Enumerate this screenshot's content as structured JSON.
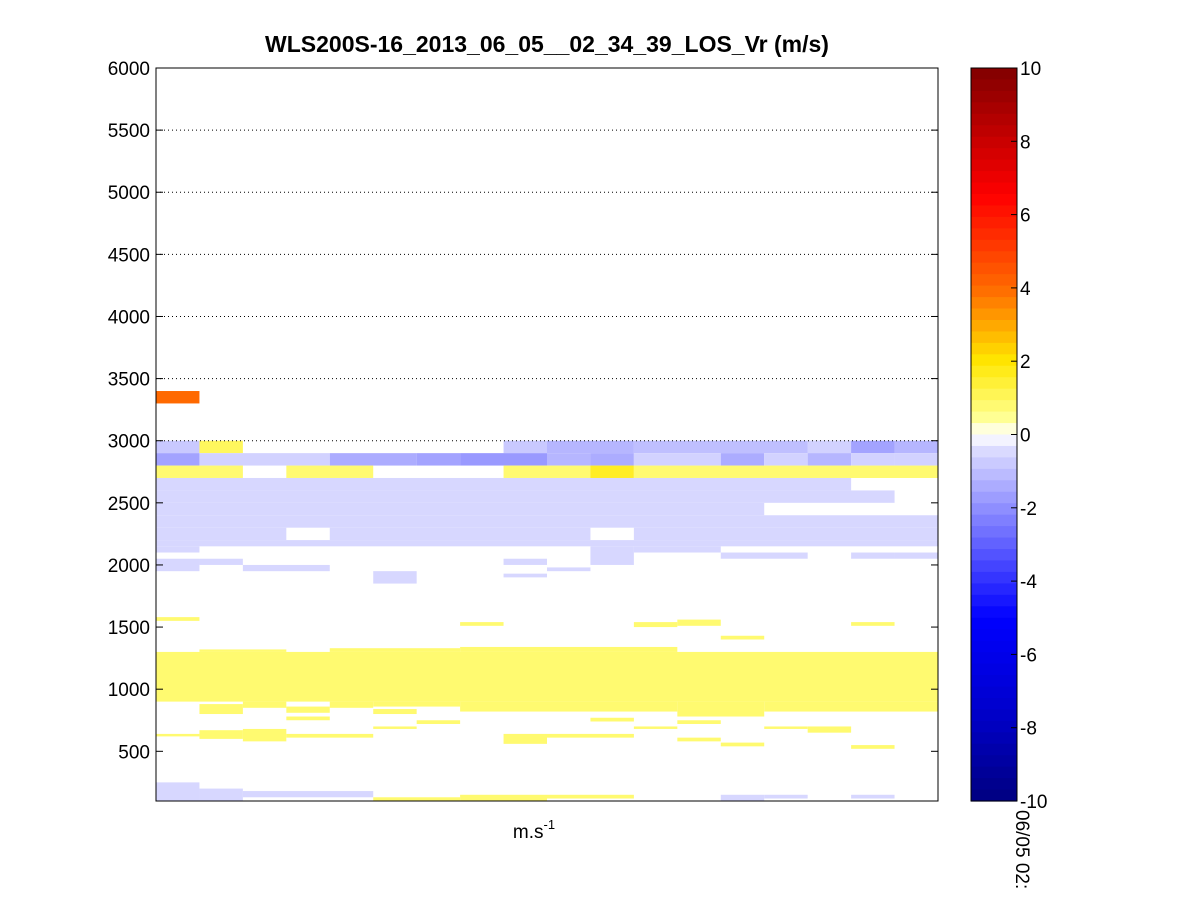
{
  "chart_data": {
    "type": "heatmap",
    "title": "WLS200S-16_2013_06_05__02_34_39_LOS_Vr (m/s)",
    "xlabel_base": "m.s",
    "xlabel_exp": "-1",
    "x_tick_label": "06/05 02:",
    "ylim": [
      100,
      6000
    ],
    "yticks": [
      500,
      1000,
      1500,
      2000,
      2500,
      3000,
      3500,
      4000,
      4500,
      5000,
      5500,
      6000
    ],
    "y_grid_lines": [
      3000,
      3500,
      4000,
      4500,
      5000,
      5500
    ],
    "grid": "dotted horizontal",
    "n_columns": 18,
    "colorbar": {
      "range": [
        -10,
        10
      ],
      "ticks": [
        -10,
        -8,
        -6,
        -4,
        -2,
        0,
        2,
        4,
        6,
        8,
        10
      ],
      "colormap": "blue-white-red (jet-like)",
      "position": "right"
    },
    "cells": [
      {
        "c0": 0,
        "c1": 1,
        "y0": 3300,
        "y1": 3400,
        "v": 4.0
      },
      {
        "c0": 0,
        "c1": 1,
        "y0": 2900,
        "y1": 3000,
        "v": -0.8
      },
      {
        "c0": 1,
        "c1": 2,
        "y0": 2900,
        "y1": 3000,
        "v": 1.0
      },
      {
        "c0": 11,
        "c1": 15,
        "y0": 2900,
        "y1": 3000,
        "v": -1.0
      },
      {
        "c0": 15,
        "c1": 16,
        "y0": 2900,
        "y1": 3000,
        "v": -0.8
      },
      {
        "c0": 8,
        "c1": 9,
        "y0": 2900,
        "y1": 3000,
        "v": -0.8
      },
      {
        "c0": 9,
        "c1": 11,
        "y0": 2900,
        "y1": 3000,
        "v": -1.2
      },
      {
        "c0": 15,
        "c1": 16,
        "y0": 2900,
        "y1": 3000,
        "v": -0.6
      },
      {
        "c0": 16,
        "c1": 17,
        "y0": 2900,
        "y1": 3000,
        "v": -1.6
      },
      {
        "c0": 17,
        "c1": 18,
        "y0": 2900,
        "y1": 3000,
        "v": -1.2
      },
      {
        "c0": 0,
        "c1": 1,
        "y0": 2800,
        "y1": 2900,
        "v": -1.6
      },
      {
        "c0": 1,
        "c1": 4,
        "y0": 2800,
        "y1": 2900,
        "v": -0.6
      },
      {
        "c0": 4,
        "c1": 6,
        "y0": 2800,
        "y1": 2900,
        "v": -1.4
      },
      {
        "c0": 6,
        "c1": 7,
        "y0": 2800,
        "y1": 2900,
        "v": -1.6
      },
      {
        "c0": 7,
        "c1": 9,
        "y0": 2800,
        "y1": 2900,
        "v": -1.8
      },
      {
        "c0": 9,
        "c1": 10,
        "y0": 2800,
        "y1": 2900,
        "v": -1.2
      },
      {
        "c0": 10,
        "c1": 11,
        "y0": 2800,
        "y1": 2900,
        "v": -1.4
      },
      {
        "c0": 11,
        "c1": 13,
        "y0": 2800,
        "y1": 2900,
        "v": -0.6
      },
      {
        "c0": 13,
        "c1": 14,
        "y0": 2800,
        "y1": 2900,
        "v": -1.4
      },
      {
        "c0": 14,
        "c1": 15,
        "y0": 2800,
        "y1": 2900,
        "v": -0.6
      },
      {
        "c0": 15,
        "c1": 16,
        "y0": 2800,
        "y1": 2900,
        "v": -1.2
      },
      {
        "c0": 16,
        "c1": 17,
        "y0": 2800,
        "y1": 2900,
        "v": -0.6
      },
      {
        "c0": 17,
        "c1": 18,
        "y0": 2800,
        "y1": 2900,
        "v": -0.6
      },
      {
        "c0": 0,
        "c1": 2,
        "y0": 2700,
        "y1": 2800,
        "v": 0.8
      },
      {
        "c0": 3,
        "c1": 5,
        "y0": 2700,
        "y1": 2800,
        "v": 0.8
      },
      {
        "c0": 8,
        "c1": 10,
        "y0": 2700,
        "y1": 2800,
        "v": 0.8
      },
      {
        "c0": 10,
        "c1": 11,
        "y0": 2700,
        "y1": 2800,
        "v": 1.6
      },
      {
        "c0": 11,
        "c1": 18,
        "y0": 2700,
        "y1": 2800,
        "v": 0.8
      },
      {
        "c0": 0,
        "c1": 16,
        "y0": 2600,
        "y1": 2700,
        "v": -0.5
      },
      {
        "c0": 0,
        "c1": 17,
        "y0": 2500,
        "y1": 2600,
        "v": -0.5
      },
      {
        "c0": 0,
        "c1": 14,
        "y0": 2400,
        "y1": 2500,
        "v": -0.5
      },
      {
        "c0": 0,
        "c1": 18,
        "y0": 2300,
        "y1": 2400,
        "v": -0.5
      },
      {
        "c0": 0,
        "c1": 3,
        "y0": 2200,
        "y1": 2300,
        "v": -0.5
      },
      {
        "c0": 4,
        "c1": 10,
        "y0": 2200,
        "y1": 2300,
        "v": -0.5
      },
      {
        "c0": 11,
        "c1": 18,
        "y0": 2200,
        "y1": 2300,
        "v": -0.5
      },
      {
        "c0": 0,
        "c1": 18,
        "y0": 2150,
        "y1": 2200,
        "v": -0.5
      },
      {
        "c0": 0,
        "c1": 1,
        "y0": 2100,
        "y1": 2150,
        "v": -0.5
      },
      {
        "c0": 10,
        "c1": 11,
        "y0": 2000,
        "y1": 2150,
        "v": -0.5
      },
      {
        "c0": 11,
        "c1": 13,
        "y0": 2100,
        "y1": 2150,
        "v": -0.5
      },
      {
        "c0": 13,
        "c1": 15,
        "y0": 2050,
        "y1": 2100,
        "v": -0.5
      },
      {
        "c0": 17,
        "c1": 18,
        "y0": 2050,
        "y1": 2100,
        "v": -0.5
      },
      {
        "c0": 0,
        "c1": 1,
        "y0": 1950,
        "y1": 2050,
        "v": -0.5
      },
      {
        "c0": 1,
        "c1": 2,
        "y0": 2000,
        "y1": 2050,
        "v": -0.5
      },
      {
        "c0": 2,
        "c1": 4,
        "y0": 1950,
        "y1": 2000,
        "v": -0.5
      },
      {
        "c0": 5,
        "c1": 6,
        "y0": 1850,
        "y1": 1950,
        "v": -0.5
      },
      {
        "c0": 8,
        "c1": 9,
        "y0": 2000,
        "y1": 2050,
        "v": -0.5
      },
      {
        "c0": 8,
        "c1": 9,
        "y0": 1900,
        "y1": 1930,
        "v": -0.5
      },
      {
        "c0": 9,
        "c1": 10,
        "y0": 1950,
        "y1": 1980,
        "v": -0.5
      },
      {
        "c0": 16,
        "c1": 17,
        "y0": 2050,
        "y1": 2100,
        "v": -0.5
      },
      {
        "c0": 0,
        "c1": 1,
        "y0": 1550,
        "y1": 1580,
        "v": 0.8
      },
      {
        "c0": 7,
        "c1": 8,
        "y0": 1510,
        "y1": 1540,
        "v": 0.8
      },
      {
        "c0": 11,
        "c1": 12,
        "y0": 1500,
        "y1": 1540,
        "v": 0.8
      },
      {
        "c0": 12,
        "c1": 13,
        "y0": 1510,
        "y1": 1560,
        "v": 0.8
      },
      {
        "c0": 13,
        "c1": 14,
        "y0": 1400,
        "y1": 1430,
        "v": 0.8
      },
      {
        "c0": 16,
        "c1": 17,
        "y0": 1510,
        "y1": 1540,
        "v": 0.8
      },
      {
        "c0": 0,
        "c1": 18,
        "y0": 900,
        "y1": 1300,
        "v": 0.8
      },
      {
        "c0": 1,
        "c1": 3,
        "y0": 1300,
        "y1": 1320,
        "v": 0.8
      },
      {
        "c0": 4,
        "c1": 7,
        "y0": 1300,
        "y1": 1330,
        "v": 0.8
      },
      {
        "c0": 7,
        "c1": 12,
        "y0": 1300,
        "y1": 1340,
        "v": 0.8
      },
      {
        "c0": 1,
        "c1": 2,
        "y0": 800,
        "y1": 880,
        "v": 0.8
      },
      {
        "c0": 2,
        "c1": 3,
        "y0": 850,
        "y1": 900,
        "v": 0.8
      },
      {
        "c0": 3,
        "c1": 4,
        "y0": 810,
        "y1": 860,
        "v": 0.8
      },
      {
        "c0": 4,
        "c1": 5,
        "y0": 850,
        "y1": 900,
        "v": 0.8
      },
      {
        "c0": 5,
        "c1": 7,
        "y0": 860,
        "y1": 900,
        "v": 0.8
      },
      {
        "c0": 7,
        "c1": 12,
        "y0": 820,
        "y1": 900,
        "v": 0.8
      },
      {
        "c0": 12,
        "c1": 14,
        "y0": 780,
        "y1": 900,
        "v": 0.8
      },
      {
        "c0": 14,
        "c1": 18,
        "y0": 820,
        "y1": 900,
        "v": 0.8
      },
      {
        "c0": 3,
        "c1": 4,
        "y0": 750,
        "y1": 780,
        "v": 0.8
      },
      {
        "c0": 5,
        "c1": 6,
        "y0": 800,
        "y1": 840,
        "v": 0.8
      },
      {
        "c0": 6,
        "c1": 7,
        "y0": 720,
        "y1": 750,
        "v": 0.8
      },
      {
        "c0": 10,
        "c1": 11,
        "y0": 740,
        "y1": 770,
        "v": 0.8
      },
      {
        "c0": 12,
        "c1": 13,
        "y0": 720,
        "y1": 750,
        "v": 0.8
      },
      {
        "c0": 0,
        "c1": 1,
        "y0": 620,
        "y1": 640,
        "v": 0.8
      },
      {
        "c0": 1,
        "c1": 2,
        "y0": 600,
        "y1": 670,
        "v": 0.8
      },
      {
        "c0": 2,
        "c1": 3,
        "y0": 580,
        "y1": 680,
        "v": 0.8
      },
      {
        "c0": 3,
        "c1": 5,
        "y0": 610,
        "y1": 640,
        "v": 0.8
      },
      {
        "c0": 5,
        "c1": 6,
        "y0": 680,
        "y1": 700,
        "v": 0.8
      },
      {
        "c0": 8,
        "c1": 9,
        "y0": 560,
        "y1": 640,
        "v": 0.8
      },
      {
        "c0": 9,
        "c1": 11,
        "y0": 610,
        "y1": 640,
        "v": 0.8
      },
      {
        "c0": 11,
        "c1": 12,
        "y0": 680,
        "y1": 700,
        "v": 0.8
      },
      {
        "c0": 12,
        "c1": 13,
        "y0": 580,
        "y1": 610,
        "v": 0.8
      },
      {
        "c0": 13,
        "c1": 14,
        "y0": 540,
        "y1": 570,
        "v": 0.8
      },
      {
        "c0": 14,
        "c1": 15,
        "y0": 680,
        "y1": 700,
        "v": 0.8
      },
      {
        "c0": 15,
        "c1": 16,
        "y0": 650,
        "y1": 700,
        "v": 0.8
      },
      {
        "c0": 16,
        "c1": 17,
        "y0": 520,
        "y1": 550,
        "v": 0.8
      },
      {
        "c0": 0,
        "c1": 1,
        "y0": 100,
        "y1": 250,
        "v": -0.5
      },
      {
        "c0": 1,
        "c1": 2,
        "y0": 100,
        "y1": 200,
        "v": -0.5
      },
      {
        "c0": 2,
        "c1": 5,
        "y0": 130,
        "y1": 180,
        "v": -0.5
      },
      {
        "c0": 5,
        "c1": 7,
        "y0": 100,
        "y1": 130,
        "v": 0.8
      },
      {
        "c0": 7,
        "c1": 9,
        "y0": 100,
        "y1": 150,
        "v": 0.8
      },
      {
        "c0": 9,
        "c1": 11,
        "y0": 120,
        "y1": 150,
        "v": 0.8
      },
      {
        "c0": 13,
        "c1": 14,
        "y0": 100,
        "y1": 150,
        "v": -0.5
      },
      {
        "c0": 14,
        "c1": 15,
        "y0": 120,
        "y1": 150,
        "v": -0.5
      },
      {
        "c0": 16,
        "c1": 17,
        "y0": 120,
        "y1": 150,
        "v": -0.5
      }
    ]
  }
}
